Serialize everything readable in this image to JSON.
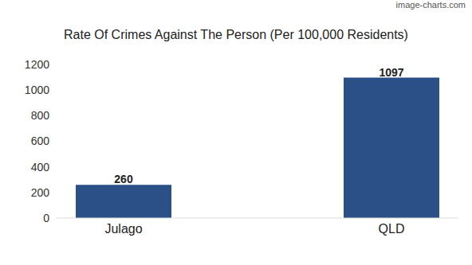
{
  "chart_data": {
    "type": "bar",
    "title": "Rate Of Crimes Against The Person (Per 100,000 Residents)",
    "annotations": [
      "image-charts.com"
    ],
    "categories": [
      "Julago",
      "QLD"
    ],
    "values": [
      260,
      1097
    ],
    "color": "#2a5087",
    "ylim": [
      0,
      1200
    ],
    "yticks": [
      0,
      200,
      400,
      600,
      800,
      1000,
      1200
    ],
    "grid": false,
    "data_labels": true
  }
}
